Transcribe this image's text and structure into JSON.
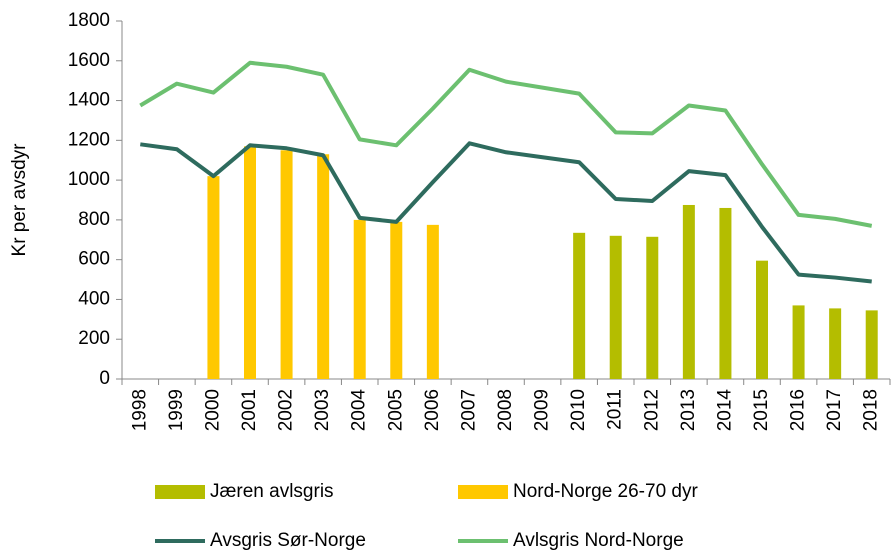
{
  "chart_data": {
    "type": "bar",
    "y_label": "Kr per avsdyr",
    "categories": [
      "1998",
      "1999",
      "2000",
      "2001",
      "2002",
      "2003",
      "2004",
      "2005",
      "2006",
      "2007",
      "2008",
      "2009",
      "2010",
      "2011",
      "2012",
      "2013",
      "2014",
      "2015",
      "2016",
      "2017",
      "2018"
    ],
    "series": [
      {
        "name": "Jæren avlsgris",
        "type": "bar",
        "color": "#b4bd00",
        "values": [
          null,
          null,
          null,
          null,
          null,
          null,
          null,
          null,
          null,
          null,
          null,
          null,
          735,
          720,
          715,
          875,
          860,
          595,
          370,
          355,
          345
        ]
      },
      {
        "name": "Nord-Norge 26-70 dyr",
        "type": "bar",
        "color": "#ffc800",
        "values": [
          null,
          null,
          1020,
          1170,
          1150,
          1130,
          800,
          790,
          775,
          null,
          null,
          null,
          null,
          null,
          null,
          null,
          null,
          null,
          null,
          null,
          null
        ]
      },
      {
        "name": "Avsgris Sør-Norge",
        "type": "line",
        "color": "#2e6b5e",
        "values": [
          1180,
          1155,
          1020,
          1175,
          1160,
          1125,
          810,
          790,
          990,
          1185,
          1140,
          1115,
          1090,
          905,
          895,
          1045,
          1025,
          765,
          525,
          510,
          490
        ]
      },
      {
        "name": "Avlsgris Nord-Norge",
        "type": "line",
        "color": "#6cc070",
        "values": [
          1375,
          1485,
          1440,
          1590,
          1570,
          1530,
          1205,
          1175,
          1360,
          1555,
          1495,
          1465,
          1435,
          1240,
          1235,
          1375,
          1350,
          1080,
          825,
          805,
          770
        ]
      }
    ],
    "ylim": [
      0,
      1800
    ],
    "yticks": [
      0,
      200,
      400,
      600,
      800,
      1000,
      1200,
      1400,
      1600,
      1800
    ]
  }
}
